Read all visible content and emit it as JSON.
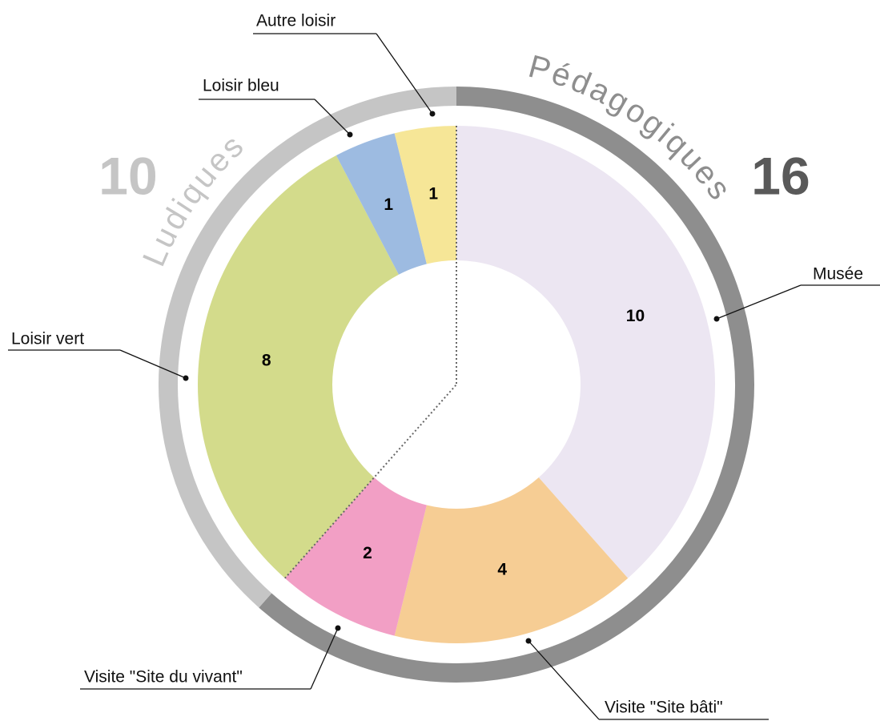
{
  "chart_data": {
    "type": "donut",
    "categories": [
      "Musée",
      "Visite \"Site bâti\"",
      "Visite \"Site du vivant\"",
      "Loisir vert",
      "Loisir bleu",
      "Autre loisir"
    ],
    "values": [
      10,
      4,
      2,
      8,
      1,
      1
    ],
    "colors": [
      "#ece6f2",
      "#f6cd94",
      "#f29fc5",
      "#d3db8b",
      "#9dbbe1",
      "#f6e697"
    ],
    "groups": [
      {
        "name": "Pédagogiques",
        "value": 16,
        "color": "#8e8e8e",
        "text_color": "#595959"
      },
      {
        "name": "Ludiques",
        "value": 10,
        "color": "#c5c5c5",
        "text_color": "#c5c5c5"
      }
    ]
  }
}
